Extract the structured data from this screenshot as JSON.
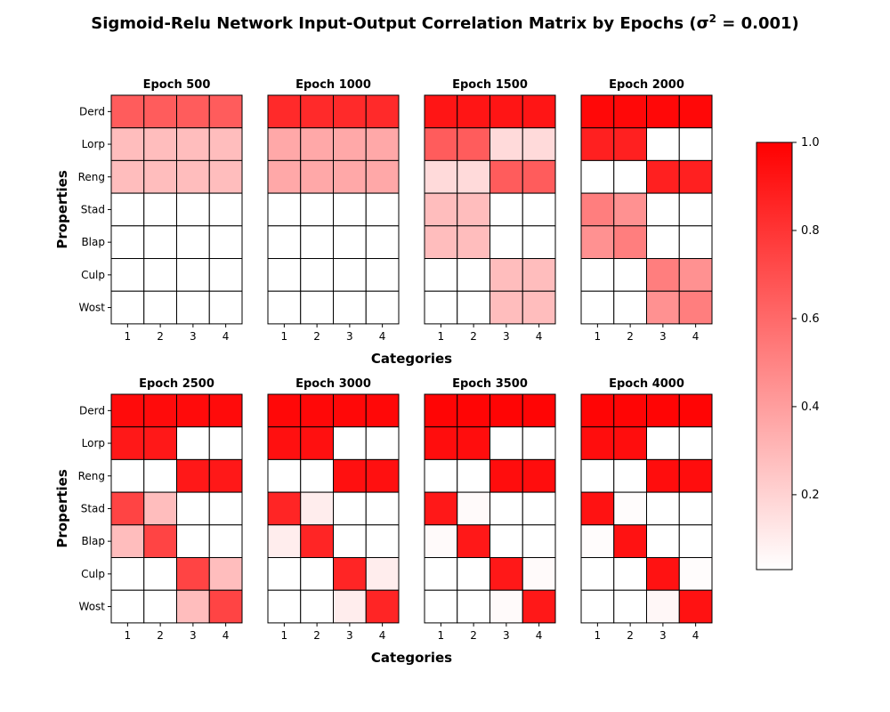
{
  "title_prefix": "Sigmoid-Relu Network Input-Output Correlation Matrix by Epochs (σ",
  "title_superscript": "2",
  "title_suffix": " = 0.001)",
  "chart_data": {
    "type": "heatmap",
    "xlabel": "Categories",
    "ylabel": "Properties",
    "categories": [
      "1",
      "2",
      "3",
      "4"
    ],
    "properties": [
      "Derd",
      "Lorp",
      "Reng",
      "Stad",
      "Blap",
      "Culp",
      "Wost"
    ],
    "colorbar": {
      "min": 0.03,
      "max": 1.0,
      "ticks": [
        "0.2",
        "0.4",
        "0.6",
        "0.8",
        "1.0"
      ],
      "low_color": "#ffffff",
      "high_color": "#ff0000"
    },
    "panels": [
      {
        "label": "Epoch 500",
        "values": [
          [
            0.65,
            0.65,
            0.65,
            0.65
          ],
          [
            0.28,
            0.28,
            0.28,
            0.28
          ],
          [
            0.28,
            0.28,
            0.28,
            0.28
          ],
          [
            0.02,
            0.02,
            0.02,
            0.02
          ],
          [
            0.02,
            0.02,
            0.02,
            0.02
          ],
          [
            0.02,
            0.02,
            0.02,
            0.02
          ],
          [
            0.02,
            0.02,
            0.02,
            0.02
          ]
        ]
      },
      {
        "label": "Epoch 1000",
        "values": [
          [
            0.84,
            0.84,
            0.84,
            0.84
          ],
          [
            0.36,
            0.36,
            0.36,
            0.36
          ],
          [
            0.36,
            0.36,
            0.36,
            0.36
          ],
          [
            0.02,
            0.02,
            0.02,
            0.02
          ],
          [
            0.02,
            0.02,
            0.02,
            0.02
          ],
          [
            0.02,
            0.02,
            0.02,
            0.02
          ],
          [
            0.02,
            0.02,
            0.02,
            0.02
          ]
        ]
      },
      {
        "label": "Epoch 1500",
        "values": [
          [
            0.92,
            0.92,
            0.92,
            0.92
          ],
          [
            0.65,
            0.65,
            0.17,
            0.17
          ],
          [
            0.17,
            0.17,
            0.65,
            0.65
          ],
          [
            0.28,
            0.28,
            0.02,
            0.02
          ],
          [
            0.28,
            0.28,
            0.02,
            0.02
          ],
          [
            0.02,
            0.02,
            0.28,
            0.28
          ],
          [
            0.02,
            0.02,
            0.28,
            0.28
          ]
        ]
      },
      {
        "label": "Epoch 2000",
        "values": [
          [
            0.97,
            0.97,
            0.97,
            0.97
          ],
          [
            0.88,
            0.88,
            0.02,
            0.02
          ],
          [
            0.02,
            0.02,
            0.88,
            0.88
          ],
          [
            0.52,
            0.45,
            0.02,
            0.02
          ],
          [
            0.45,
            0.52,
            0.02,
            0.02
          ],
          [
            0.02,
            0.02,
            0.52,
            0.45
          ],
          [
            0.02,
            0.02,
            0.45,
            0.52
          ]
        ]
      },
      {
        "label": "Epoch 2500",
        "values": [
          [
            0.96,
            0.96,
            0.96,
            0.96
          ],
          [
            0.91,
            0.91,
            0.02,
            0.02
          ],
          [
            0.02,
            0.02,
            0.91,
            0.91
          ],
          [
            0.74,
            0.28,
            0.02,
            0.02
          ],
          [
            0.28,
            0.74,
            0.02,
            0.02
          ],
          [
            0.02,
            0.02,
            0.74,
            0.28
          ],
          [
            0.03,
            0.03,
            0.28,
            0.74
          ]
        ]
      },
      {
        "label": "Epoch 3000",
        "values": [
          [
            0.97,
            0.97,
            0.97,
            0.97
          ],
          [
            0.94,
            0.94,
            0.02,
            0.02
          ],
          [
            0.03,
            0.03,
            0.94,
            0.94
          ],
          [
            0.86,
            0.1,
            0.03,
            0.03
          ],
          [
            0.1,
            0.86,
            0.02,
            0.02
          ],
          [
            0.02,
            0.02,
            0.86,
            0.1
          ],
          [
            0.03,
            0.03,
            0.1,
            0.86
          ]
        ]
      },
      {
        "label": "Epoch 3500",
        "values": [
          [
            0.98,
            0.98,
            0.98,
            0.98
          ],
          [
            0.95,
            0.95,
            0.02,
            0.02
          ],
          [
            0.02,
            0.02,
            0.95,
            0.95
          ],
          [
            0.91,
            0.05,
            0.02,
            0.02
          ],
          [
            0.05,
            0.91,
            0.02,
            0.02
          ],
          [
            0.02,
            0.02,
            0.91,
            0.05
          ],
          [
            0.02,
            0.02,
            0.05,
            0.91
          ]
        ]
      },
      {
        "label": "Epoch 4000",
        "values": [
          [
            0.98,
            0.98,
            0.98,
            0.98
          ],
          [
            0.95,
            0.95,
            0.02,
            0.02
          ],
          [
            0.03,
            0.03,
            0.95,
            0.95
          ],
          [
            0.93,
            0.04,
            0.02,
            0.02
          ],
          [
            0.04,
            0.93,
            0.02,
            0.02
          ],
          [
            0.02,
            0.02,
            0.93,
            0.04
          ],
          [
            0.02,
            0.02,
            0.06,
            0.93
          ]
        ]
      }
    ]
  }
}
